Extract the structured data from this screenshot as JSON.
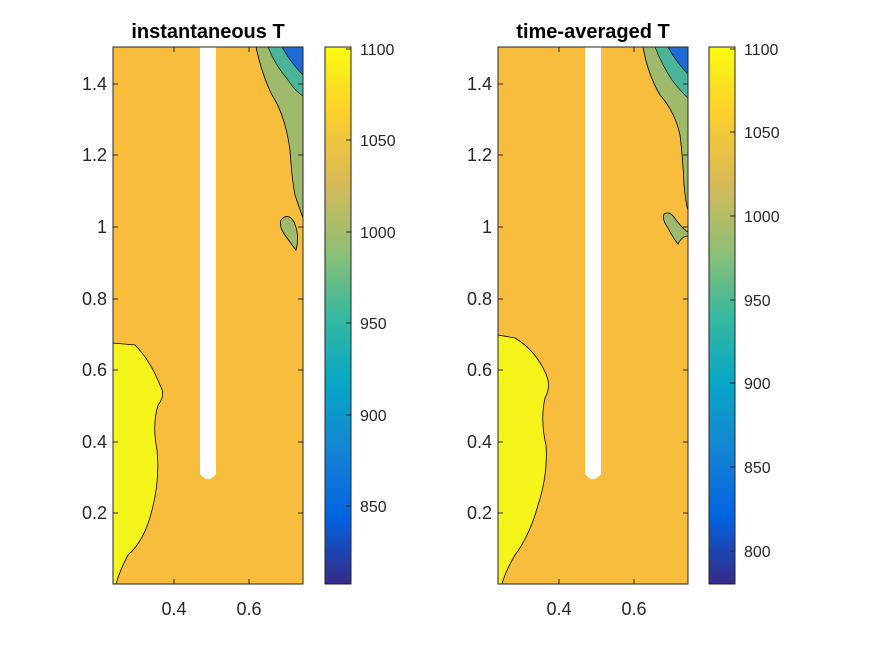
{
  "chart_data": [
    {
      "type": "contour",
      "title": "instantaneous T",
      "xlabel": "",
      "ylabel": "",
      "xlim": [
        0.25,
        0.75
      ],
      "ylim": [
        0.0,
        1.5
      ],
      "xticks": [
        "0.4",
        "0.6"
      ],
      "xtick_values": [
        0.4,
        0.6
      ],
      "yticks": [
        "0.2",
        "0.4",
        "0.6",
        "0.8",
        "1",
        "1.2",
        "1.4"
      ],
      "ytick_values": [
        0.2,
        0.4,
        0.6,
        0.8,
        1.0,
        1.2,
        1.4
      ],
      "colorbar": {
        "ticks": [
          "850",
          "900",
          "950",
          "1000",
          "1050",
          "1100"
        ],
        "tick_values": [
          850,
          900,
          950,
          1000,
          1050,
          1100
        ],
        "range": [
          805,
          1100
        ],
        "colormap": "parula"
      },
      "regions": [
        {
          "name": "background",
          "value": 1055,
          "color": "#f9bd3e"
        },
        {
          "name": "hot-lower-left",
          "value": 1090,
          "color": "#f4f41a"
        },
        {
          "name": "cool-upper-right",
          "value": 1015,
          "color": "#9fba6a"
        },
        {
          "name": "cold-corner",
          "value": 880,
          "color": "#1e6cd3"
        }
      ],
      "insert": {
        "x_range": [
          0.475,
          0.525
        ],
        "y_bottom": 0.29,
        "color": "#ffffff"
      },
      "grid": false,
      "box": true
    },
    {
      "type": "contour",
      "title": "time-averaged T",
      "xlabel": "",
      "ylabel": "",
      "xlim": [
        0.25,
        0.75
      ],
      "ylim": [
        0.0,
        1.5
      ],
      "xticks": [
        "0.4",
        "0.6"
      ],
      "xtick_values": [
        0.4,
        0.6
      ],
      "yticks": [
        "0.2",
        "0.4",
        "0.6",
        "0.8",
        "1",
        "1.2",
        "1.4"
      ],
      "ytick_values": [
        0.2,
        0.4,
        0.6,
        0.8,
        1.0,
        1.2,
        1.4
      ],
      "colorbar": {
        "ticks": [
          "800",
          "850",
          "900",
          "950",
          "1000",
          "1050",
          "1100"
        ],
        "tick_values": [
          800,
          850,
          900,
          950,
          1000,
          1050,
          1100
        ],
        "range": [
          780,
          1100
        ],
        "colormap": "parula"
      },
      "regions": [
        {
          "name": "background",
          "value": 1055,
          "color": "#f9bd3e"
        },
        {
          "name": "hot-lower-left",
          "value": 1090,
          "color": "#f4f41a"
        },
        {
          "name": "cool-upper-right",
          "value": 1015,
          "color": "#9fba6a"
        },
        {
          "name": "cold-corner",
          "value": 860,
          "color": "#1e6cd3"
        }
      ],
      "insert": {
        "x_range": [
          0.475,
          0.525
        ],
        "y_bottom": 0.29,
        "color": "#ffffff"
      },
      "grid": false,
      "box": true
    }
  ]
}
